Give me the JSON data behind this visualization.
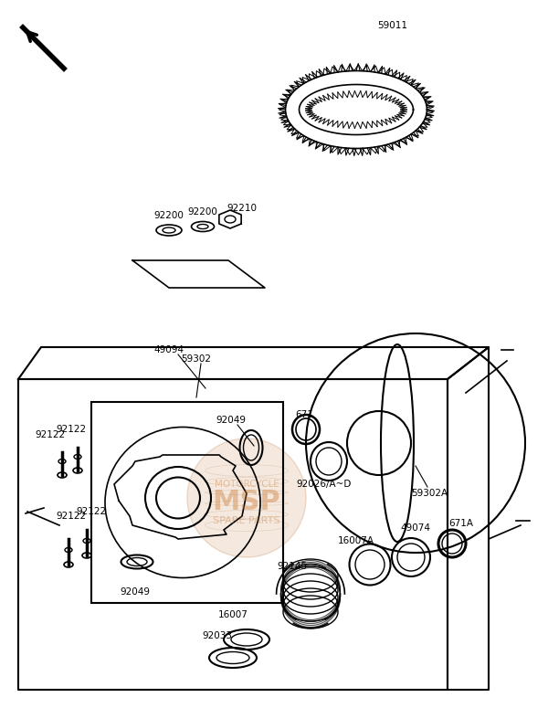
{
  "bg_color": "#ffffff",
  "watermark_color_orange": "#e8a87c",
  "watermark_color_gray": "#c8c8c8",
  "line_color": "#000000",
  "label_color": "#000000",
  "label_fontsize": 7.5,
  "parts": {
    "belt_label": "59011",
    "small_parts_labels": [
      "92200",
      "92200",
      "92210"
    ],
    "main_labels": [
      "49094",
      "59302",
      "92049",
      "671",
      "92026/A~D",
      "59302A",
      "671A",
      "49074",
      "16007A",
      "92145",
      "16007",
      "92033"
    ],
    "side_labels": [
      "92122",
      "92122",
      "92122",
      "92122"
    ]
  }
}
